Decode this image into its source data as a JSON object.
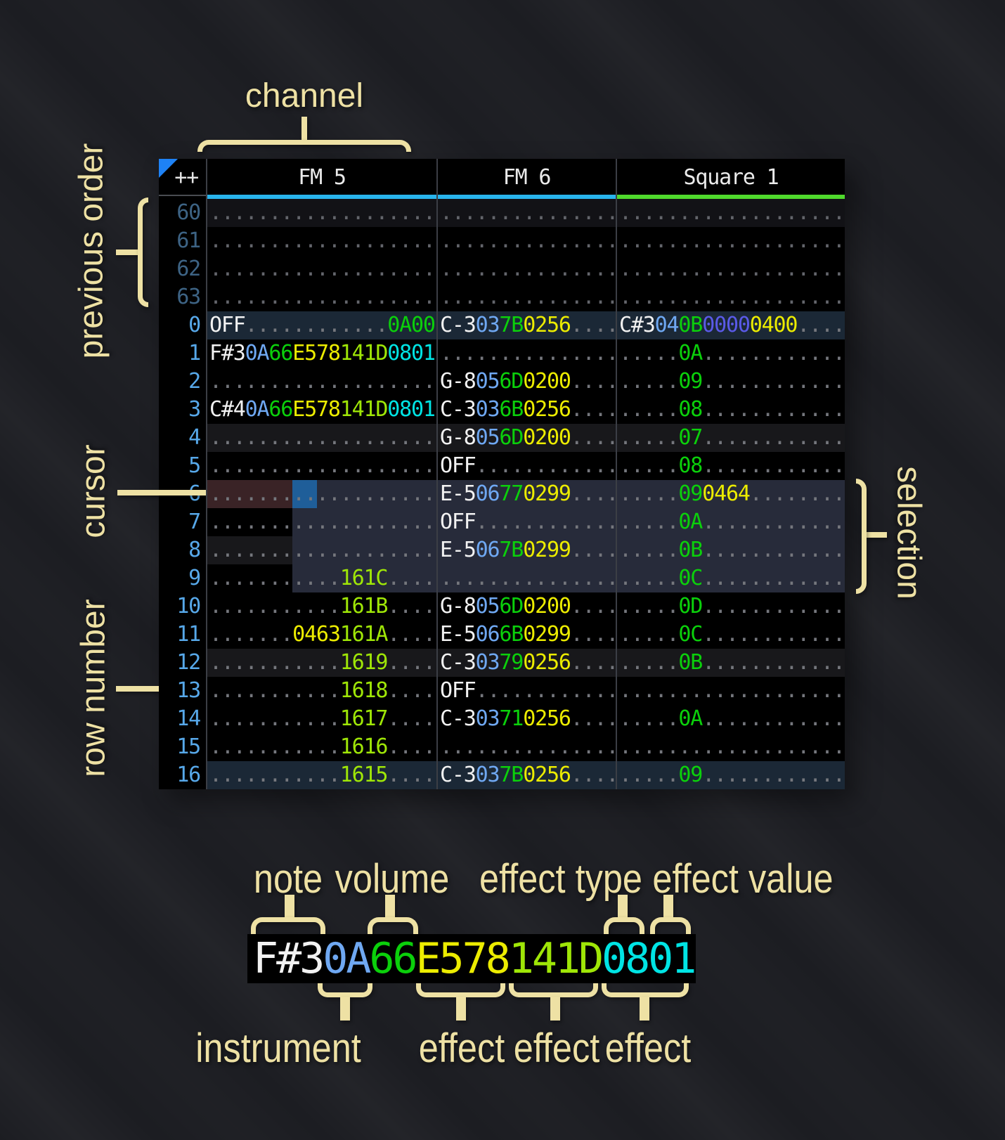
{
  "callouts": {
    "channel": "channel",
    "previous_order": "previous order",
    "cursor": "cursor",
    "row_number": "row number",
    "selection": "selection",
    "note": "note",
    "volume": "volume",
    "effect_type": "effect type",
    "effect_value": "effect value",
    "instrument": "instrument",
    "effect_1": "effect",
    "effect_2": "effect",
    "effect_3": "effect"
  },
  "pattern": {
    "corner_label": "++",
    "channels": [
      {
        "label": "FM 5",
        "underline_color": "#29b4ec"
      },
      {
        "label": "FM 6",
        "underline_color": "#29b4ec"
      },
      {
        "label": "Square 1",
        "underline_color": "#4fd92c"
      }
    ],
    "rows": [
      {
        "n": "60",
        "prev": true,
        "hl": "prev4",
        "cells": [
          [
            "dot:19"
          ],
          [
            "dot:15"
          ],
          [
            "dot:19"
          ]
        ]
      },
      {
        "n": "61",
        "prev": true,
        "hl": "",
        "cells": [
          [
            "dot:19"
          ],
          [
            "dot:15"
          ],
          [
            "dot:19"
          ]
        ]
      },
      {
        "n": "62",
        "prev": true,
        "hl": "",
        "cells": [
          [
            "dot:19"
          ],
          [
            "dot:15"
          ],
          [
            "dot:19"
          ]
        ]
      },
      {
        "n": "63",
        "prev": true,
        "hl": "",
        "cells": [
          [
            "dot:19"
          ],
          [
            "dot:15"
          ],
          [
            "dot:19"
          ]
        ]
      },
      {
        "n": "0",
        "prev": false,
        "hl": "major",
        "cells": [
          [
            "note:OFF",
            "dot:12",
            "fxg:0A00"
          ],
          [
            "note:C-3",
            "ins:03",
            "vol:7B",
            "fxy:0256",
            "dot:4"
          ],
          [
            "note:C#3",
            "ins:04",
            "vol:0B",
            "fxv:0000",
            "fxy:0400",
            "dot:4"
          ]
        ]
      },
      {
        "n": "1",
        "prev": false,
        "hl": "",
        "cells": [
          [
            "note:F#3",
            "ins:0A",
            "vol:66",
            "fxy:E578",
            "fxl:141D",
            "fxc:0801"
          ],
          [
            "dot:15"
          ],
          [
            "dot:5",
            "vol:0A",
            "dot:12"
          ]
        ]
      },
      {
        "n": "2",
        "prev": false,
        "hl": "",
        "cells": [
          [
            "dot:19"
          ],
          [
            "note:G-8",
            "ins:05",
            "vol:6D",
            "fxy:0200",
            "dot:4"
          ],
          [
            "dot:5",
            "vol:09",
            "dot:12"
          ]
        ]
      },
      {
        "n": "3",
        "prev": false,
        "hl": "",
        "cells": [
          [
            "note:C#4",
            "ins:0A",
            "vol:66",
            "fxy:E578",
            "fxl:141D",
            "fxc:0801"
          ],
          [
            "note:C-3",
            "ins:03",
            "vol:6B",
            "fxy:0256",
            "dot:4"
          ],
          [
            "dot:5",
            "vol:08",
            "dot:12"
          ]
        ]
      },
      {
        "n": "4",
        "prev": false,
        "hl": "minor",
        "cells": [
          [
            "dot:19"
          ],
          [
            "note:G-8",
            "ins:05",
            "vol:6D",
            "fxy:0200",
            "dot:4"
          ],
          [
            "dot:5",
            "vol:07",
            "dot:12"
          ]
        ]
      },
      {
        "n": "5",
        "prev": false,
        "hl": "",
        "cells": [
          [
            "dot:19"
          ],
          [
            "note:OFF",
            "dot:12"
          ],
          [
            "dot:5",
            "vol:08",
            "dot:12"
          ]
        ]
      },
      {
        "n": "6",
        "prev": false,
        "hl": "",
        "cells": [
          [
            "dot:19"
          ],
          [
            "note:E-5",
            "ins:06",
            "vol:77",
            "fxy:0299",
            "dot:4"
          ],
          [
            "dot:5",
            "vol:09",
            "fxy:0464",
            "dot:8"
          ]
        ]
      },
      {
        "n": "7",
        "prev": false,
        "hl": "",
        "cells": [
          [
            "dot:19"
          ],
          [
            "note:OFF",
            "dot:12"
          ],
          [
            "dot:5",
            "vol:0A",
            "dot:12"
          ]
        ]
      },
      {
        "n": "8",
        "prev": false,
        "hl": "minor",
        "cells": [
          [
            "dot:19"
          ],
          [
            "note:E-5",
            "ins:06",
            "vol:7B",
            "fxy:0299",
            "dot:4"
          ],
          [
            "dot:5",
            "vol:0B",
            "dot:12"
          ]
        ]
      },
      {
        "n": "9",
        "prev": false,
        "hl": "",
        "cells": [
          [
            "dot:11",
            "fxl:161C",
            "dot:4"
          ],
          [
            "dot:15"
          ],
          [
            "dot:5",
            "vol:0C",
            "dot:12"
          ]
        ]
      },
      {
        "n": "10",
        "prev": false,
        "hl": "",
        "cells": [
          [
            "dot:11",
            "fxl:161B",
            "dot:4"
          ],
          [
            "note:G-8",
            "ins:05",
            "vol:6D",
            "fxy:0200",
            "dot:4"
          ],
          [
            "dot:5",
            "vol:0D",
            "dot:12"
          ]
        ]
      },
      {
        "n": "11",
        "prev": false,
        "hl": "",
        "cells": [
          [
            "dot:7",
            "fxy:0463",
            "fxl:161A",
            "dot:4"
          ],
          [
            "note:E-5",
            "ins:06",
            "vol:6B",
            "fxy:0299",
            "dot:4"
          ],
          [
            "dot:5",
            "vol:0C",
            "dot:12"
          ]
        ]
      },
      {
        "n": "12",
        "prev": false,
        "hl": "minor",
        "cells": [
          [
            "dot:11",
            "fxl:1619",
            "dot:4"
          ],
          [
            "note:C-3",
            "ins:03",
            "vol:79",
            "fxy:0256",
            "dot:4"
          ],
          [
            "dot:5",
            "vol:0B",
            "dot:12"
          ]
        ]
      },
      {
        "n": "13",
        "prev": false,
        "hl": "",
        "cells": [
          [
            "dot:11",
            "fxl:1618",
            "dot:4"
          ],
          [
            "note:OFF",
            "dot:12"
          ],
          [
            "dot:19"
          ]
        ]
      },
      {
        "n": "14",
        "prev": false,
        "hl": "",
        "cells": [
          [
            "dot:11",
            "fxl:1617",
            "dot:4"
          ],
          [
            "note:C-3",
            "ins:03",
            "vol:71",
            "fxy:0256",
            "dot:4"
          ],
          [
            "dot:5",
            "vol:0A",
            "dot:12"
          ]
        ]
      },
      {
        "n": "15",
        "prev": false,
        "hl": "",
        "cells": [
          [
            "dot:11",
            "fxl:1616",
            "dot:4"
          ],
          [
            "dot:15"
          ],
          [
            "dot:19"
          ]
        ]
      },
      {
        "n": "16",
        "prev": false,
        "hl": "major",
        "cells": [
          [
            "dot:11",
            "fxl:1615",
            "dot:4"
          ],
          [
            "note:C-3",
            "ins:03",
            "vol:7B",
            "fxy:0256",
            "dot:4"
          ],
          [
            "dot:5",
            "vol:09",
            "dot:12"
          ]
        ]
      }
    ]
  },
  "legend": {
    "segments": [
      {
        "text": "F#3",
        "kind": "note"
      },
      {
        "text": "0A",
        "kind": "ins"
      },
      {
        "text": "66",
        "kind": "vol"
      },
      {
        "text": "E578",
        "kind": "fxy"
      },
      {
        "text": "141D",
        "kind": "fxl"
      },
      {
        "text": "0801",
        "kind": "fxc"
      }
    ]
  },
  "colors": {
    "accent_cream": "#eee1a4",
    "note": "#f2f2f2",
    "instrument": "#6fa8f2",
    "volume": "#0bd00b",
    "effect_yellow": "#ecec00",
    "effect_lime": "#9fe607",
    "effect_cyan": "#00e4e4",
    "effect_violet": "#5a5ae8",
    "cursor": "#1f5e99",
    "selection": "#272b3a",
    "cursor_row": "#3a2326",
    "row_number": "#57a8e9",
    "fm_channel_underline": "#29b4ec",
    "square_channel_underline": "#4fd92c"
  }
}
